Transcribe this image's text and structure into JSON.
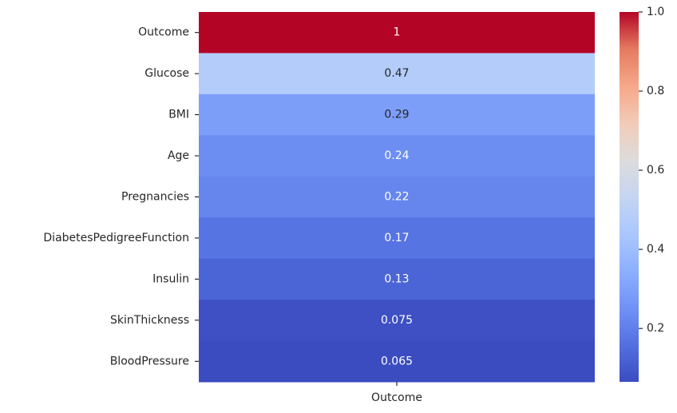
{
  "chart_data": {
    "type": "heatmap",
    "rows": [
      "Outcome",
      "Glucose",
      "BMI",
      "Age",
      "Pregnancies",
      "DiabetesPedigreeFunction",
      "Insulin",
      "SkinThickness",
      "BloodPressure"
    ],
    "columns": [
      "Outcome"
    ],
    "values": [
      1.0,
      0.47,
      0.29,
      0.24,
      0.22,
      0.17,
      0.13,
      0.075,
      0.065
    ],
    "annotations": [
      "1",
      "0.47",
      "0.29",
      "0.24",
      "0.22",
      "0.17",
      "0.13",
      "0.075",
      "0.065"
    ],
    "colormap": "coolwarm",
    "color_range": [
      0.065,
      1.0
    ],
    "colorbar": {
      "ticks": [
        0.2,
        0.4,
        0.6,
        0.8,
        1.0
      ],
      "tick_labels": [
        "0.2",
        "0.4",
        "0.6",
        "0.8",
        "1.0"
      ]
    },
    "title": "",
    "xlabel": "",
    "ylabel": ""
  }
}
